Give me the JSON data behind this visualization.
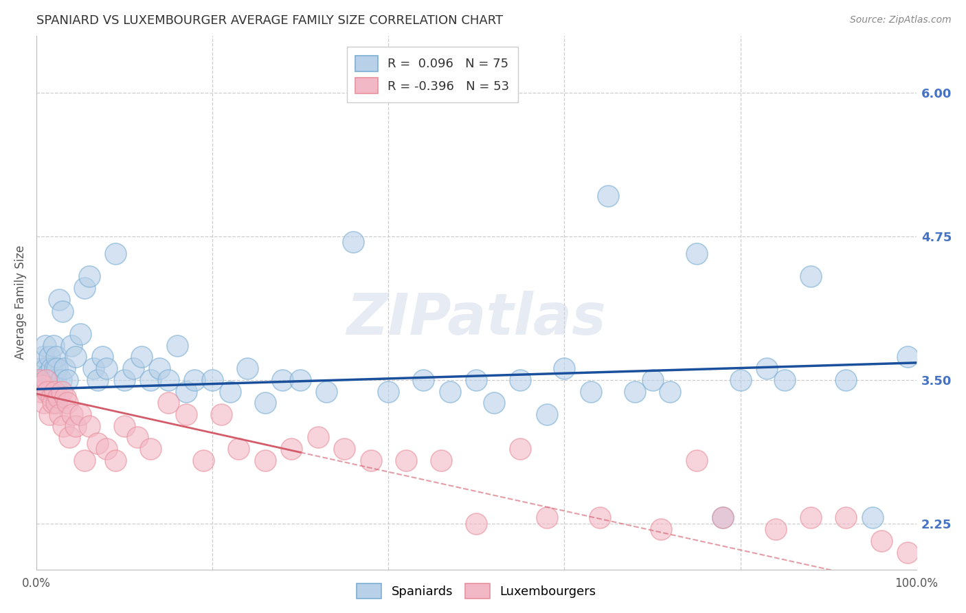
{
  "title": "SPANIARD VS LUXEMBOURGER AVERAGE FAMILY SIZE CORRELATION CHART",
  "source": "Source: ZipAtlas.com",
  "ylabel": "Average Family Size",
  "xlim": [
    0,
    100
  ],
  "ylim": [
    1.85,
    6.5
  ],
  "yticks": [
    2.25,
    3.5,
    4.75,
    6.0
  ],
  "blue_color_face": "#b8d0e8",
  "blue_color_edge": "#7bafd4",
  "pink_color_face": "#f2b8c6",
  "pink_color_edge": "#e8919e",
  "blue_line_color": "#1a4f9c",
  "pink_line_color": "#d45b6a",
  "r_blue": 0.096,
  "n_blue": 75,
  "r_pink": -0.396,
  "n_pink": 53,
  "spaniards_x": [
    0.4,
    0.5,
    0.6,
    0.7,
    0.8,
    0.9,
    1.0,
    1.1,
    1.2,
    1.3,
    1.4,
    1.5,
    1.6,
    1.7,
    1.8,
    1.9,
    2.0,
    2.1,
    2.2,
    2.3,
    2.4,
    2.6,
    2.8,
    3.0,
    3.2,
    3.5,
    4.0,
    4.5,
    5.0,
    5.5,
    6.0,
    6.5,
    7.0,
    7.5,
    8.0,
    9.0,
    10.0,
    11.0,
    12.0,
    13.0,
    14.0,
    15.0,
    16.0,
    17.0,
    18.0,
    20.0,
    22.0,
    24.0,
    26.0,
    28.0,
    30.0,
    33.0,
    36.0,
    40.0,
    44.0,
    47.0,
    50.0,
    52.0,
    55.0,
    58.0,
    60.0,
    63.0,
    65.0,
    68.0,
    70.0,
    72.0,
    75.0,
    78.0,
    80.0,
    83.0,
    85.0,
    88.0,
    92.0,
    95.0,
    99.0
  ],
  "spaniards_y": [
    3.5,
    3.45,
    3.6,
    3.5,
    3.7,
    3.5,
    3.8,
    3.6,
    3.5,
    3.55,
    3.4,
    3.7,
    3.5,
    3.6,
    3.5,
    3.4,
    3.8,
    3.6,
    3.5,
    3.7,
    3.6,
    4.2,
    3.5,
    4.1,
    3.6,
    3.5,
    3.8,
    3.7,
    3.9,
    4.3,
    4.4,
    3.6,
    3.5,
    3.7,
    3.6,
    4.6,
    3.5,
    3.6,
    3.7,
    3.5,
    3.6,
    3.5,
    3.8,
    3.4,
    3.5,
    3.5,
    3.4,
    3.6,
    3.3,
    3.5,
    3.5,
    3.4,
    4.7,
    3.4,
    3.5,
    3.4,
    3.5,
    3.3,
    3.5,
    3.2,
    3.6,
    3.4,
    5.1,
    3.4,
    3.5,
    3.4,
    4.6,
    2.3,
    3.5,
    3.6,
    3.5,
    4.4,
    3.5,
    2.3,
    3.7
  ],
  "luxembourgers_x": [
    0.3,
    0.5,
    0.7,
    0.9,
    1.1,
    1.3,
    1.5,
    1.7,
    1.9,
    2.1,
    2.3,
    2.5,
    2.7,
    2.9,
    3.1,
    3.3,
    3.5,
    3.8,
    4.1,
    4.5,
    5.0,
    5.5,
    6.0,
    7.0,
    8.0,
    9.0,
    10.0,
    11.5,
    13.0,
    15.0,
    17.0,
    19.0,
    21.0,
    23.0,
    26.0,
    29.0,
    32.0,
    35.0,
    38.0,
    42.0,
    46.0,
    50.0,
    55.0,
    58.0,
    64.0,
    71.0,
    75.0,
    78.0,
    84.0,
    88.0,
    92.0,
    96.0,
    99.0
  ],
  "luxembourgers_y": [
    3.5,
    3.4,
    3.45,
    3.3,
    3.5,
    3.4,
    3.2,
    3.35,
    3.3,
    3.4,
    3.3,
    3.35,
    3.2,
    3.4,
    3.1,
    3.35,
    3.3,
    3.0,
    3.2,
    3.1,
    3.2,
    2.8,
    3.1,
    2.95,
    2.9,
    2.8,
    3.1,
    3.0,
    2.9,
    3.3,
    3.2,
    2.8,
    3.2,
    2.9,
    2.8,
    2.9,
    3.0,
    2.9,
    2.8,
    2.8,
    2.8,
    2.25,
    2.9,
    2.3,
    2.3,
    2.2,
    2.8,
    2.3,
    2.2,
    2.3,
    2.3,
    2.1,
    2.0
  ],
  "watermark": "ZIPatlas",
  "background_color": "#ffffff",
  "grid_color": "#c8c8c8",
  "right_ytick_color": "#4472c4",
  "title_fontsize": 13,
  "axis_label_fontsize": 12,
  "tick_fontsize": 12,
  "legend_fontsize": 13
}
